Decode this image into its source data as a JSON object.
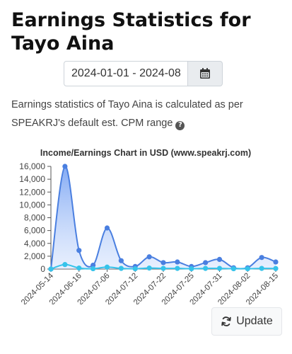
{
  "page": {
    "title": "Earnings Statistics for Tayo Aina",
    "date_range": "2024-01-01 - 2024-08",
    "description": "Earnings statistics of Tayo Aina is calculated as per SPEAKRJ's default est. CPM range",
    "help_icon": "question-circle-icon",
    "calendar_icon": "calendar-icon",
    "update_label": "Update",
    "update_icon": "refresh-icon"
  },
  "chart_data": {
    "type": "area",
    "title": "Income/Earnings Chart in USD (www.speakrj.com)",
    "xlabel": "",
    "ylabel": "",
    "ylim": [
      0,
      16000
    ],
    "yticks": [
      0,
      2000,
      4000,
      6000,
      8000,
      10000,
      12000,
      14000,
      16000
    ],
    "ytick_labels": [
      "0",
      "2,000",
      "4,000",
      "6,000",
      "8,000",
      "10,000",
      "12,000",
      "14,000",
      "16,000"
    ],
    "x_tick_labels": [
      "2024-05-14",
      "2024-06-16",
      "2024-07-06",
      "2024-07-12",
      "2024-07-22",
      "2024-07-25",
      "2024-07-31",
      "2024-08-02",
      "2024-08-15"
    ],
    "grid": false,
    "legend": "none",
    "colors": [
      "#4a7fe0",
      "#36c3ea"
    ],
    "series": [
      {
        "values": [
          0,
          16000,
          2900,
          600,
          6400,
          1300,
          400,
          1900,
          1000,
          1100,
          400,
          1000,
          1500,
          200,
          200,
          1800,
          1100
        ]
      },
      {
        "values": [
          0,
          700,
          150,
          50,
          300,
          100,
          50,
          150,
          100,
          100,
          50,
          100,
          100,
          50,
          50,
          100,
          80
        ]
      }
    ]
  }
}
